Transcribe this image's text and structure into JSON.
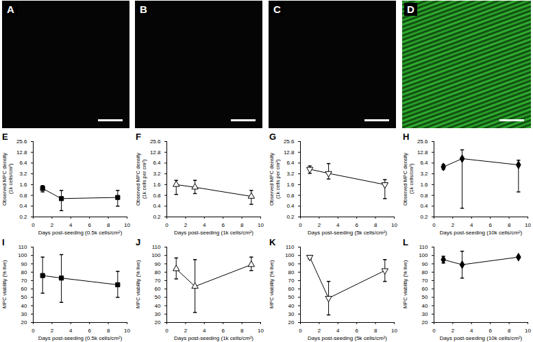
{
  "image_panels": [
    "A",
    "B",
    "C",
    "D"
  ],
  "chart_data": [
    {
      "type": "line",
      "title": "E",
      "x": [
        1,
        3,
        9
      ],
      "values": [
        1.25,
        0.65,
        0.7
      ],
      "error_bars": {
        "low": [
          1.0,
          0.3,
          0.4
        ],
        "high": [
          1.5,
          1.1,
          1.1
        ]
      },
      "xlabel": "Days post-seeding (0.5k cells/cm²)",
      "ylabel": "Observed MPC density\n(1k cells/cm²)",
      "xlim": [
        0,
        10
      ],
      "xticks": [
        0,
        2,
        4,
        6,
        8,
        10
      ],
      "ylim": [
        0.2,
        25.6
      ],
      "yticks": [
        0.2,
        0.4,
        0.8,
        1.6,
        3.2,
        6.4,
        12.8,
        25.6
      ],
      "log": "y",
      "marker": "square",
      "color": "#000000"
    },
    {
      "type": "line",
      "title": "F",
      "x": [
        1,
        3,
        9
      ],
      "values": [
        1.6,
        1.35,
        0.75
      ],
      "error_bars": {
        "low": [
          0.85,
          0.9,
          0.45
        ],
        "high": [
          2.1,
          2.1,
          1.1
        ]
      },
      "xlabel": "Days post-seeding (1k cells/cm²)",
      "ylabel": "Observed MPC density\n(1k cells per cm²)",
      "xlim": [
        0,
        10
      ],
      "xticks": [
        0,
        2,
        4,
        6,
        8,
        10
      ],
      "ylim": [
        0.2,
        25.6
      ],
      "yticks": [
        0.2,
        0.4,
        0.8,
        1.6,
        3.2,
        6.4,
        12.8,
        25.6
      ],
      "log": "y",
      "marker": "triangle-open",
      "color": "#000000"
    },
    {
      "type": "line",
      "title": "G",
      "x": [
        1,
        3,
        9
      ],
      "values": [
        4.3,
        3.3,
        1.6
      ],
      "error_bars": {
        "low": [
          3.3,
          2.3,
          0.65
        ],
        "high": [
          5.3,
          6.2,
          2.2
        ]
      },
      "xlabel": "Days post-seeding (5k cells/cm²)",
      "ylabel": "Observed MPC density\n(1k cells per cm²)",
      "xlim": [
        0,
        10
      ],
      "xticks": [
        0,
        2,
        4,
        6,
        8,
        10
      ],
      "ylim": [
        0.2,
        25.6
      ],
      "yticks": [
        0.2,
        0.4,
        0.8,
        1.6,
        3.2,
        6.4,
        12.8,
        25.6
      ],
      "log": "y",
      "marker": "triangle-down-open",
      "color": "#000000"
    },
    {
      "type": "line",
      "title": "H",
      "x": [
        1,
        3,
        9
      ],
      "values": [
        5.0,
        8.5,
        5.7
      ],
      "error_bars": {
        "low": [
          4.3,
          0.35,
          1.0
        ],
        "high": [
          5.8,
          15,
          7.7
        ]
      },
      "xlabel": "Days post-seeding (10k cells/cm²)",
      "ylabel": "Observed MPC density\n(1k cells/cm²)",
      "xlim": [
        0,
        10
      ],
      "xticks": [
        0,
        2,
        4,
        6,
        8,
        10
      ],
      "ylim": [
        0.2,
        25.6
      ],
      "yticks": [
        0.2,
        0.4,
        0.8,
        1.6,
        3.2,
        6.4,
        12.8,
        25.6
      ],
      "log": "y",
      "marker": "diamond",
      "color": "#000000"
    },
    {
      "type": "line",
      "title": "I",
      "x": [
        1,
        3,
        9
      ],
      "values": [
        76,
        73,
        65
      ],
      "error_bars": {
        "low": [
          55,
          44,
          50
        ],
        "high": [
          98,
          101,
          81
        ]
      },
      "xlabel": "Days post-seeding (0.5k cells/cm²)",
      "ylabel": "MPC viability (% live)",
      "xlim": [
        0,
        10
      ],
      "xticks": [
        0,
        2,
        4,
        6,
        8,
        10
      ],
      "ylim": [
        20,
        110
      ],
      "yticks": [
        20,
        30,
        40,
        50,
        60,
        70,
        80,
        90,
        100,
        110
      ],
      "marker": "square",
      "color": "#000000"
    },
    {
      "type": "line",
      "title": "J",
      "x": [
        1,
        3,
        9
      ],
      "values": [
        84,
        63,
        89
      ],
      "error_bars": {
        "low": [
          72,
          32,
          82
        ],
        "high": [
          97,
          95,
          98
        ]
      },
      "xlabel": "Days post-seeding (1k cells/cm²)",
      "ylabel": "MPC viability (% live)",
      "xlim": [
        0,
        10
      ],
      "xticks": [
        0,
        2,
        4,
        6,
        8,
        10
      ],
      "ylim": [
        20,
        110
      ],
      "yticks": [
        20,
        30,
        40,
        50,
        60,
        70,
        80,
        90,
        100,
        110
      ],
      "marker": "triangle-open",
      "color": "#000000"
    },
    {
      "type": "line",
      "title": "K",
      "x": [
        1,
        3,
        9
      ],
      "values": [
        98,
        49,
        82
      ],
      "error_bars": {
        "low": [
          96,
          29,
          69
        ],
        "high": [
          100,
          69,
          95
        ]
      },
      "xlabel": "Days post-seeding (5k cells/cm²)",
      "ylabel": "MPC viability (% live)",
      "xlim": [
        0,
        10
      ],
      "xticks": [
        0,
        2,
        4,
        6,
        8,
        10
      ],
      "ylim": [
        20,
        110
      ],
      "yticks": [
        20,
        30,
        40,
        50,
        60,
        70,
        80,
        90,
        100,
        110
      ],
      "marker": "triangle-down-open",
      "color": "#000000"
    },
    {
      "type": "line",
      "title": "L",
      "x": [
        1,
        3,
        9
      ],
      "values": [
        95,
        89,
        98
      ],
      "error_bars": {
        "low": [
          91,
          73,
          97
        ],
        "high": [
          99,
          105,
          99
        ]
      },
      "xlabel": "Days post-seeding (10k cells/cm²)",
      "ylabel": "MPC viability (% live)",
      "xlim": [
        0,
        10
      ],
      "xticks": [
        0,
        2,
        4,
        6,
        8,
        10
      ],
      "ylim": [
        20,
        110
      ],
      "yticks": [
        20,
        30,
        40,
        50,
        60,
        70,
        80,
        90,
        100,
        110
      ],
      "marker": "diamond",
      "color": "#000000"
    }
  ]
}
